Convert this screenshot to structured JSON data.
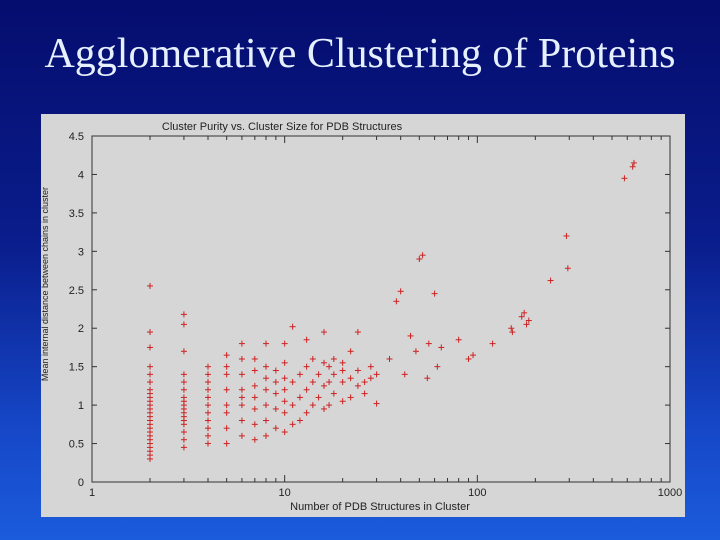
{
  "slide": {
    "title": "Agglomerative Clustering of Proteins"
  },
  "chart_data": {
    "type": "scatter",
    "title": "Cluster Purity vs. Cluster Size for PDB Structures",
    "xlabel": "Number of PDB Structures in Cluster",
    "ylabel": "Mean internal distance between chains in cluster",
    "xscale": "log",
    "xlim": [
      1,
      1000
    ],
    "ylim": [
      0,
      4.5
    ],
    "grid": false,
    "marker": "+",
    "color": "#cc2222",
    "x_ticks": [
      1,
      10,
      100,
      1000
    ],
    "x_tick_labels": [
      "1",
      "10",
      "100",
      "1000"
    ],
    "y_ticks": [
      0,
      0.5,
      1,
      1.5,
      2,
      2.5,
      3,
      3.5,
      4,
      4.5
    ],
    "y_tick_labels": [
      "0",
      "0.5",
      "1",
      "1.5",
      "2",
      "2.5",
      "3",
      "3.5",
      "4",
      "4.5"
    ],
    "points": [
      [
        2,
        0.3
      ],
      [
        2,
        0.35
      ],
      [
        2,
        0.4
      ],
      [
        2,
        0.45
      ],
      [
        2,
        0.5
      ],
      [
        2,
        0.55
      ],
      [
        2,
        0.6
      ],
      [
        2,
        0.65
      ],
      [
        2,
        0.7
      ],
      [
        2,
        0.75
      ],
      [
        2,
        0.8
      ],
      [
        2,
        0.85
      ],
      [
        2,
        0.9
      ],
      [
        2,
        0.95
      ],
      [
        2,
        1.0
      ],
      [
        2,
        1.05
      ],
      [
        2,
        1.1
      ],
      [
        2,
        1.15
      ],
      [
        2,
        1.2
      ],
      [
        2,
        1.3
      ],
      [
        2,
        1.4
      ],
      [
        2,
        1.5
      ],
      [
        2,
        1.75
      ],
      [
        2,
        1.95
      ],
      [
        2,
        2.55
      ],
      [
        3,
        0.45
      ],
      [
        3,
        0.55
      ],
      [
        3,
        0.65
      ],
      [
        3,
        0.75
      ],
      [
        3,
        0.8
      ],
      [
        3,
        0.85
      ],
      [
        3,
        0.9
      ],
      [
        3,
        0.95
      ],
      [
        3,
        1.0
      ],
      [
        3,
        1.05
      ],
      [
        3,
        1.1
      ],
      [
        3,
        1.2
      ],
      [
        3,
        1.3
      ],
      [
        3,
        1.4
      ],
      [
        3,
        1.7
      ],
      [
        3,
        2.05
      ],
      [
        3,
        2.18
      ],
      [
        4,
        0.5
      ],
      [
        4,
        0.6
      ],
      [
        4,
        0.7
      ],
      [
        4,
        0.8
      ],
      [
        4,
        0.9
      ],
      [
        4,
        1.0
      ],
      [
        4,
        1.1
      ],
      [
        4,
        1.2
      ],
      [
        4,
        1.3
      ],
      [
        4,
        1.4
      ],
      [
        4,
        1.5
      ],
      [
        5,
        0.5
      ],
      [
        5,
        0.7
      ],
      [
        5,
        0.9
      ],
      [
        5,
        1.0
      ],
      [
        5,
        1.2
      ],
      [
        5,
        1.4
      ],
      [
        5,
        1.5
      ],
      [
        5,
        1.65
      ],
      [
        6,
        0.6
      ],
      [
        6,
        0.8
      ],
      [
        6,
        1.0
      ],
      [
        6,
        1.1
      ],
      [
        6,
        1.2
      ],
      [
        6,
        1.4
      ],
      [
        6,
        1.6
      ],
      [
        6,
        1.8
      ],
      [
        7,
        0.55
      ],
      [
        7,
        0.75
      ],
      [
        7,
        0.95
      ],
      [
        7,
        1.1
      ],
      [
        7,
        1.25
      ],
      [
        7,
        1.45
      ],
      [
        7,
        1.6
      ],
      [
        8,
        0.6
      ],
      [
        8,
        0.8
      ],
      [
        8,
        1.0
      ],
      [
        8,
        1.2
      ],
      [
        8,
        1.35
      ],
      [
        8,
        1.5
      ],
      [
        8,
        1.8
      ],
      [
        9,
        0.7
      ],
      [
        9,
        0.95
      ],
      [
        9,
        1.15
      ],
      [
        9,
        1.3
      ],
      [
        9,
        1.45
      ],
      [
        10,
        0.65
      ],
      [
        10,
        0.9
      ],
      [
        10,
        1.05
      ],
      [
        10,
        1.2
      ],
      [
        10,
        1.35
      ],
      [
        10,
        1.55
      ],
      [
        10,
        1.8
      ],
      [
        11,
        0.75
      ],
      [
        11,
        1.0
      ],
      [
        11,
        1.3
      ],
      [
        11,
        2.02
      ],
      [
        12,
        0.8
      ],
      [
        12,
        1.1
      ],
      [
        12,
        1.4
      ],
      [
        13,
        0.9
      ],
      [
        13,
        1.2
      ],
      [
        13,
        1.5
      ],
      [
        13,
        1.85
      ],
      [
        14,
        1.0
      ],
      [
        14,
        1.3
      ],
      [
        14,
        1.6
      ],
      [
        15,
        1.1
      ],
      [
        15,
        1.4
      ],
      [
        16,
        0.95
      ],
      [
        16,
        1.25
      ],
      [
        16,
        1.55
      ],
      [
        16,
        1.95
      ],
      [
        17,
        1.0
      ],
      [
        17,
        1.3
      ],
      [
        17,
        1.5
      ],
      [
        18,
        1.15
      ],
      [
        18,
        1.4
      ],
      [
        18,
        1.6
      ],
      [
        20,
        1.05
      ],
      [
        20,
        1.3
      ],
      [
        20,
        1.55
      ],
      [
        20,
        1.45
      ],
      [
        22,
        1.1
      ],
      [
        22,
        1.35
      ],
      [
        22,
        1.7
      ],
      [
        24,
        1.25
      ],
      [
        24,
        1.45
      ],
      [
        24,
        1.95
      ],
      [
        26,
        1.15
      ],
      [
        26,
        1.3
      ],
      [
        28,
        1.35
      ],
      [
        28,
        1.5
      ],
      [
        30,
        1.02
      ],
      [
        30,
        1.4
      ],
      [
        35,
        1.6
      ],
      [
        38,
        2.35
      ],
      [
        40,
        2.48
      ],
      [
        42,
        1.4
      ],
      [
        45,
        1.9
      ],
      [
        48,
        1.7
      ],
      [
        50,
        2.9
      ],
      [
        52,
        2.95
      ],
      [
        55,
        1.35
      ],
      [
        56,
        1.8
      ],
      [
        60,
        2.45
      ],
      [
        62,
        1.5
      ],
      [
        65,
        1.75
      ],
      [
        80,
        1.85
      ],
      [
        90,
        1.6
      ],
      [
        95,
        1.65
      ],
      [
        120,
        1.8
      ],
      [
        150,
        2.0
      ],
      [
        152,
        1.95
      ],
      [
        170,
        2.15
      ],
      [
        175,
        2.2
      ],
      [
        180,
        2.05
      ],
      [
        185,
        2.1
      ],
      [
        240,
        2.62
      ],
      [
        290,
        3.2
      ],
      [
        295,
        2.78
      ],
      [
        580,
        3.95
      ],
      [
        640,
        4.1
      ],
      [
        650,
        4.15
      ]
    ]
  }
}
